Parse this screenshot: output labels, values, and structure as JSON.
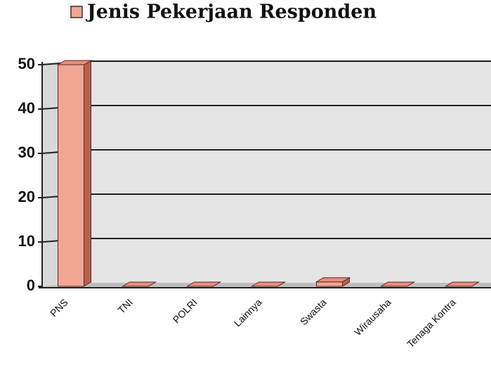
{
  "chart_data": {
    "type": "bar",
    "title": "Jenis Pekerjaan Responden",
    "categories": [
      "PNS",
      "TNI",
      "POLRI",
      "Lainnya",
      "Swasta",
      "Wirausaha",
      "Tenaga Kontra"
    ],
    "series": [
      {
        "name": "Jenis Pekerjaan Responden",
        "color": "#f2a593",
        "values": [
          50,
          0,
          0,
          0,
          1,
          0,
          0
        ]
      }
    ],
    "ylim": [
      0,
      50
    ],
    "yticks": [
      0,
      10,
      20,
      30,
      40,
      50
    ],
    "grid": true,
    "legend": "top"
  }
}
